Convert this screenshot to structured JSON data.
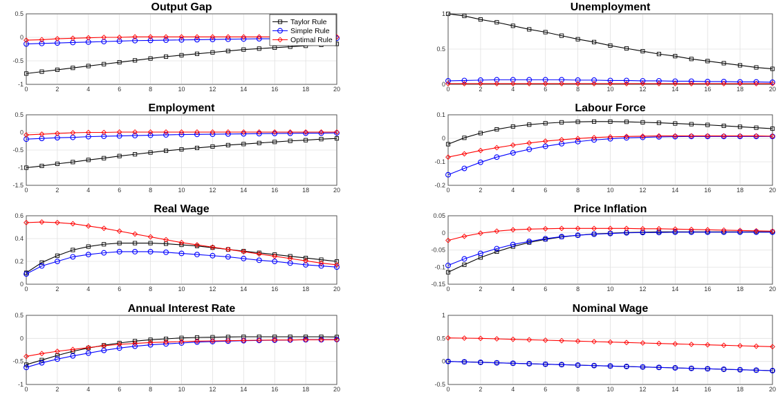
{
  "chart_data": [
    {
      "type": "line",
      "title": "Output Gap",
      "x": [
        0,
        1,
        2,
        3,
        4,
        5,
        6,
        7,
        8,
        9,
        10,
        11,
        12,
        13,
        14,
        15,
        16,
        17,
        18,
        19,
        20
      ],
      "xlim": [
        0,
        20
      ],
      "xticks": [
        0,
        2,
        4,
        6,
        8,
        10,
        12,
        14,
        16,
        18,
        20
      ],
      "ylim": [
        -1,
        0.5
      ],
      "yticks": [
        -1,
        -0.5,
        0,
        0.5
      ],
      "ytick_labels": [
        "-1",
        "-0.5",
        "0",
        "0.5"
      ],
      "grid": true,
      "legend": "top-right",
      "series": [
        {
          "name": "Taylor Rule",
          "color": "#000000",
          "marker": "square",
          "values": [
            -0.77,
            -0.73,
            -0.69,
            -0.65,
            -0.61,
            -0.57,
            -0.53,
            -0.49,
            -0.45,
            -0.41,
            -0.38,
            -0.35,
            -0.32,
            -0.29,
            -0.26,
            -0.24,
            -0.22,
            -0.2,
            -0.18,
            -0.16,
            -0.14
          ]
        },
        {
          "name": "Simple Rule",
          "color": "#0000ff",
          "marker": "circle",
          "values": [
            -0.14,
            -0.13,
            -0.12,
            -0.11,
            -0.1,
            -0.09,
            -0.08,
            -0.07,
            -0.065,
            -0.06,
            -0.055,
            -0.05,
            -0.045,
            -0.04,
            -0.035,
            -0.03,
            -0.03,
            -0.025,
            -0.025,
            -0.02,
            -0.02
          ]
        },
        {
          "name": "Optimal Rule",
          "color": "#ff0000",
          "marker": "diamond",
          "values": [
            -0.06,
            -0.05,
            -0.03,
            -0.02,
            -0.01,
            0,
            0,
            0.01,
            0.01,
            0.01,
            0.01,
            0.01,
            0.01,
            0.01,
            0.01,
            0.01,
            0.01,
            0.01,
            0.01,
            0.01,
            0.01
          ]
        }
      ]
    },
    {
      "type": "line",
      "title": "Unemployment",
      "x": [
        0,
        1,
        2,
        3,
        4,
        5,
        6,
        7,
        8,
        9,
        10,
        11,
        12,
        13,
        14,
        15,
        16,
        17,
        18,
        19,
        20
      ],
      "xlim": [
        0,
        20
      ],
      "xticks": [
        0,
        2,
        4,
        6,
        8,
        10,
        12,
        14,
        16,
        18,
        20
      ],
      "ylim": [
        0,
        1
      ],
      "yticks": [
        0,
        0.5,
        1
      ],
      "ytick_labels": [
        "0",
        "0.5",
        "1"
      ],
      "grid": true,
      "series": [
        {
          "name": "Taylor Rule",
          "color": "#000000",
          "marker": "square",
          "values": [
            1,
            0.97,
            0.92,
            0.88,
            0.83,
            0.78,
            0.74,
            0.69,
            0.64,
            0.6,
            0.55,
            0.51,
            0.47,
            0.43,
            0.4,
            0.36,
            0.33,
            0.3,
            0.27,
            0.24,
            0.22
          ]
        },
        {
          "name": "Simple Rule",
          "color": "#0000ff",
          "marker": "circle",
          "values": [
            0.05,
            0.055,
            0.06,
            0.065,
            0.065,
            0.065,
            0.065,
            0.065,
            0.06,
            0.06,
            0.055,
            0.055,
            0.05,
            0.05,
            0.045,
            0.045,
            0.04,
            0.04,
            0.035,
            0.035,
            0.03
          ]
        },
        {
          "name": "Optimal Rule",
          "color": "#ff0000",
          "marker": "diamond",
          "values": [
            0.01,
            0.01,
            0.01,
            0.01,
            0.01,
            0.01,
            0.01,
            0.01,
            0.01,
            0.01,
            0.01,
            0.01,
            0.01,
            0.01,
            0.01,
            0.01,
            0.01,
            0.01,
            0.01,
            0.01,
            0.01
          ]
        }
      ]
    },
    {
      "type": "line",
      "title": "Employment",
      "x": [
        0,
        1,
        2,
        3,
        4,
        5,
        6,
        7,
        8,
        9,
        10,
        11,
        12,
        13,
        14,
        15,
        16,
        17,
        18,
        19,
        20
      ],
      "xlim": [
        0,
        20
      ],
      "xticks": [
        0,
        2,
        4,
        6,
        8,
        10,
        12,
        14,
        16,
        18,
        20
      ],
      "ylim": [
        -1.5,
        0.5
      ],
      "yticks": [
        -1.5,
        -1,
        -0.5,
        0,
        0.5
      ],
      "ytick_labels": [
        "-1.5",
        "-1",
        "-0.5",
        "0",
        "0.5"
      ],
      "grid": true,
      "series": [
        {
          "name": "Taylor Rule",
          "color": "#000000",
          "marker": "square",
          "values": [
            -1,
            -0.95,
            -0.89,
            -0.84,
            -0.78,
            -0.73,
            -0.67,
            -0.62,
            -0.57,
            -0.52,
            -0.48,
            -0.44,
            -0.4,
            -0.36,
            -0.33,
            -0.3,
            -0.27,
            -0.24,
            -0.22,
            -0.19,
            -0.17
          ]
        },
        {
          "name": "Simple Rule",
          "color": "#0000ff",
          "marker": "circle",
          "values": [
            -0.19,
            -0.17,
            -0.15,
            -0.14,
            -0.12,
            -0.11,
            -0.1,
            -0.09,
            -0.08,
            -0.07,
            -0.06,
            -0.055,
            -0.05,
            -0.045,
            -0.04,
            -0.035,
            -0.03,
            -0.025,
            -0.02,
            -0.02,
            -0.015
          ]
        },
        {
          "name": "Optimal Rule",
          "color": "#ff0000",
          "marker": "diamond",
          "values": [
            -0.07,
            -0.05,
            -0.03,
            -0.01,
            0,
            0,
            0.01,
            0.01,
            0.01,
            0.01,
            0.01,
            0.01,
            0.01,
            0.01,
            0.01,
            0.01,
            0.01,
            0.01,
            0.01,
            0.01,
            0.01
          ]
        }
      ]
    },
    {
      "type": "line",
      "title": "Labour Force",
      "x": [
        0,
        1,
        2,
        3,
        4,
        5,
        6,
        7,
        8,
        9,
        10,
        11,
        12,
        13,
        14,
        15,
        16,
        17,
        18,
        19,
        20
      ],
      "xlim": [
        0,
        20
      ],
      "xticks": [
        0,
        2,
        4,
        6,
        8,
        10,
        12,
        14,
        16,
        18,
        20
      ],
      "ylim": [
        -0.2,
        0.1
      ],
      "yticks": [
        -0.2,
        -0.1,
        0,
        0.1
      ],
      "ytick_labels": [
        "-0.2",
        "-0.1",
        "0",
        "0.1"
      ],
      "grid": true,
      "series": [
        {
          "name": "Taylor Rule",
          "color": "#000000",
          "marker": "square",
          "values": [
            -0.025,
            0.002,
            0.022,
            0.038,
            0.05,
            0.058,
            0.064,
            0.068,
            0.07,
            0.071,
            0.071,
            0.07,
            0.068,
            0.066,
            0.063,
            0.06,
            0.057,
            0.053,
            0.049,
            0.045,
            0.041
          ]
        },
        {
          "name": "Simple Rule",
          "color": "#0000ff",
          "marker": "circle",
          "values": [
            -0.155,
            -0.128,
            -0.102,
            -0.08,
            -0.062,
            -0.047,
            -0.034,
            -0.023,
            -0.014,
            -0.007,
            -0.002,
            0.002,
            0.004,
            0.006,
            0.007,
            0.008,
            0.008,
            0.008,
            0.008,
            0.008,
            0.008
          ]
        },
        {
          "name": "Optimal Rule",
          "color": "#ff0000",
          "marker": "diamond",
          "values": [
            -0.08,
            -0.066,
            -0.052,
            -0.04,
            -0.029,
            -0.02,
            -0.012,
            -0.006,
            -0.001,
            0.003,
            0.006,
            0.008,
            0.009,
            0.01,
            0.01,
            0.01,
            0.01,
            0.01,
            0.01,
            0.01,
            0.009
          ]
        }
      ]
    },
    {
      "type": "line",
      "title": "Real Wage",
      "x": [
        0,
        1,
        2,
        3,
        4,
        5,
        6,
        7,
        8,
        9,
        10,
        11,
        12,
        13,
        14,
        15,
        16,
        17,
        18,
        19,
        20
      ],
      "xlim": [
        0,
        20
      ],
      "xticks": [
        0,
        2,
        4,
        6,
        8,
        10,
        12,
        14,
        16,
        18,
        20
      ],
      "ylim": [
        0,
        0.6
      ],
      "yticks": [
        0,
        0.2,
        0.4,
        0.6
      ],
      "ytick_labels": [
        "0",
        "0.2",
        "0.4",
        "0.6"
      ],
      "grid": true,
      "series": [
        {
          "name": "Taylor Rule",
          "color": "#000000",
          "marker": "square",
          "values": [
            0.1,
            0.19,
            0.25,
            0.3,
            0.33,
            0.35,
            0.36,
            0.36,
            0.36,
            0.355,
            0.345,
            0.335,
            0.32,
            0.305,
            0.29,
            0.275,
            0.26,
            0.245,
            0.23,
            0.215,
            0.2
          ]
        },
        {
          "name": "Simple Rule",
          "color": "#0000ff",
          "marker": "circle",
          "values": [
            0.09,
            0.16,
            0.2,
            0.24,
            0.26,
            0.275,
            0.285,
            0.285,
            0.285,
            0.28,
            0.27,
            0.26,
            0.25,
            0.24,
            0.225,
            0.21,
            0.2,
            0.185,
            0.17,
            0.16,
            0.15
          ]
        },
        {
          "name": "Optimal Rule",
          "color": "#ff0000",
          "marker": "diamond",
          "values": [
            0.54,
            0.545,
            0.54,
            0.53,
            0.51,
            0.49,
            0.465,
            0.44,
            0.415,
            0.39,
            0.365,
            0.345,
            0.325,
            0.305,
            0.285,
            0.265,
            0.245,
            0.225,
            0.205,
            0.185,
            0.17
          ]
        }
      ]
    },
    {
      "type": "line",
      "title": "Price Inflation",
      "x": [
        0,
        1,
        2,
        3,
        4,
        5,
        6,
        7,
        8,
        9,
        10,
        11,
        12,
        13,
        14,
        15,
        16,
        17,
        18,
        19,
        20
      ],
      "xlim": [
        0,
        20
      ],
      "xticks": [
        0,
        2,
        4,
        6,
        8,
        10,
        12,
        14,
        16,
        18,
        20
      ],
      "ylim": [
        -0.15,
        0.05
      ],
      "yticks": [
        -0.15,
        -0.1,
        -0.05,
        0,
        0.05
      ],
      "ytick_labels": [
        "-0.15",
        "-0.1",
        "-0.05",
        "0",
        "0.05"
      ],
      "grid": true,
      "series": [
        {
          "name": "Taylor Rule",
          "color": "#000000",
          "marker": "square",
          "values": [
            -0.115,
            -0.093,
            -0.072,
            -0.055,
            -0.04,
            -0.028,
            -0.019,
            -0.012,
            -0.007,
            -0.003,
            -0.001,
            0.001,
            0.002,
            0.003,
            0.003,
            0.003,
            0.003,
            0.003,
            0.003,
            0.003,
            0.003
          ]
        },
        {
          "name": "Simple Rule",
          "color": "#0000ff",
          "marker": "circle",
          "values": [
            -0.095,
            -0.076,
            -0.06,
            -0.046,
            -0.034,
            -0.025,
            -0.017,
            -0.011,
            -0.007,
            -0.004,
            -0.002,
            0,
            0.001,
            0.001,
            0.002,
            0.002,
            0.002,
            0.002,
            0.002,
            0.002,
            0.002
          ]
        },
        {
          "name": "Optimal Rule",
          "color": "#ff0000",
          "marker": "diamond",
          "values": [
            -0.022,
            -0.01,
            -0.001,
            0.005,
            0.009,
            0.011,
            0.012,
            0.013,
            0.013,
            0.013,
            0.013,
            0.013,
            0.012,
            0.012,
            0.011,
            0.01,
            0.009,
            0.008,
            0.007,
            0.006,
            0.005
          ]
        }
      ]
    },
    {
      "type": "line",
      "title": "Annual Interest Rate",
      "x": [
        0,
        1,
        2,
        3,
        4,
        5,
        6,
        7,
        8,
        9,
        10,
        11,
        12,
        13,
        14,
        15,
        16,
        17,
        18,
        19,
        20
      ],
      "xlim": [
        0,
        20
      ],
      "xticks": [
        0,
        2,
        4,
        6,
        8,
        10,
        12,
        14,
        16,
        18,
        20
      ],
      "ylim": [
        -1,
        0.5
      ],
      "yticks": [
        -1,
        -0.5,
        0,
        0.5
      ],
      "ytick_labels": [
        "-1",
        "-0.5",
        "0",
        "0.5"
      ],
      "grid": true,
      "series": [
        {
          "name": "Taylor Rule",
          "color": "#000000",
          "marker": "square",
          "values": [
            -0.57,
            -0.47,
            -0.37,
            -0.28,
            -0.21,
            -0.15,
            -0.1,
            -0.06,
            -0.03,
            -0.01,
            0.01,
            0.02,
            0.025,
            0.03,
            0.035,
            0.035,
            0.035,
            0.035,
            0.035,
            0.035,
            0.03
          ]
        },
        {
          "name": "Simple Rule",
          "color": "#0000ff",
          "marker": "circle",
          "values": [
            -0.63,
            -0.53,
            -0.45,
            -0.38,
            -0.32,
            -0.26,
            -0.21,
            -0.17,
            -0.14,
            -0.12,
            -0.1,
            -0.08,
            -0.07,
            -0.06,
            -0.05,
            -0.045,
            -0.04,
            -0.035,
            -0.03,
            -0.03,
            -0.025
          ]
        },
        {
          "name": "Optimal Rule",
          "color": "#ff0000",
          "marker": "diamond",
          "values": [
            -0.39,
            -0.33,
            -0.28,
            -0.24,
            -0.2,
            -0.16,
            -0.13,
            -0.11,
            -0.09,
            -0.08,
            -0.07,
            -0.06,
            -0.055,
            -0.05,
            -0.045,
            -0.04,
            -0.035,
            -0.035,
            -0.03,
            -0.03,
            -0.03
          ]
        }
      ]
    },
    {
      "type": "line",
      "title": "Nominal Wage",
      "x": [
        0,
        1,
        2,
        3,
        4,
        5,
        6,
        7,
        8,
        9,
        10,
        11,
        12,
        13,
        14,
        15,
        16,
        17,
        18,
        19,
        20
      ],
      "xlim": [
        0,
        20
      ],
      "xticks": [
        0,
        2,
        4,
        6,
        8,
        10,
        12,
        14,
        16,
        18,
        20
      ],
      "ylim": [
        -0.5,
        1
      ],
      "yticks": [
        -0.5,
        0,
        0.5,
        1
      ],
      "ytick_labels": [
        "-0.5",
        "0",
        "0.5",
        "1"
      ],
      "grid": true,
      "series": [
        {
          "name": "Taylor Rule",
          "color": "#000000",
          "marker": "square",
          "values": [
            0,
            -0.01,
            -0.02,
            -0.03,
            -0.04,
            -0.05,
            -0.06,
            -0.07,
            -0.08,
            -0.09,
            -0.1,
            -0.11,
            -0.12,
            -0.13,
            -0.14,
            -0.15,
            -0.16,
            -0.17,
            -0.18,
            -0.19,
            -0.2
          ]
        },
        {
          "name": "Simple Rule",
          "color": "#0000ff",
          "marker": "circle",
          "values": [
            0,
            -0.01,
            -0.02,
            -0.03,
            -0.04,
            -0.05,
            -0.06,
            -0.07,
            -0.08,
            -0.09,
            -0.1,
            -0.11,
            -0.12,
            -0.13,
            -0.14,
            -0.15,
            -0.16,
            -0.17,
            -0.18,
            -0.19,
            -0.2
          ]
        },
        {
          "name": "Optimal Rule",
          "color": "#ff0000",
          "marker": "diamond",
          "values": [
            0.51,
            0.505,
            0.5,
            0.49,
            0.48,
            0.47,
            0.46,
            0.45,
            0.44,
            0.43,
            0.42,
            0.41,
            0.4,
            0.39,
            0.38,
            0.37,
            0.36,
            0.35,
            0.34,
            0.33,
            0.32
          ]
        }
      ]
    }
  ]
}
